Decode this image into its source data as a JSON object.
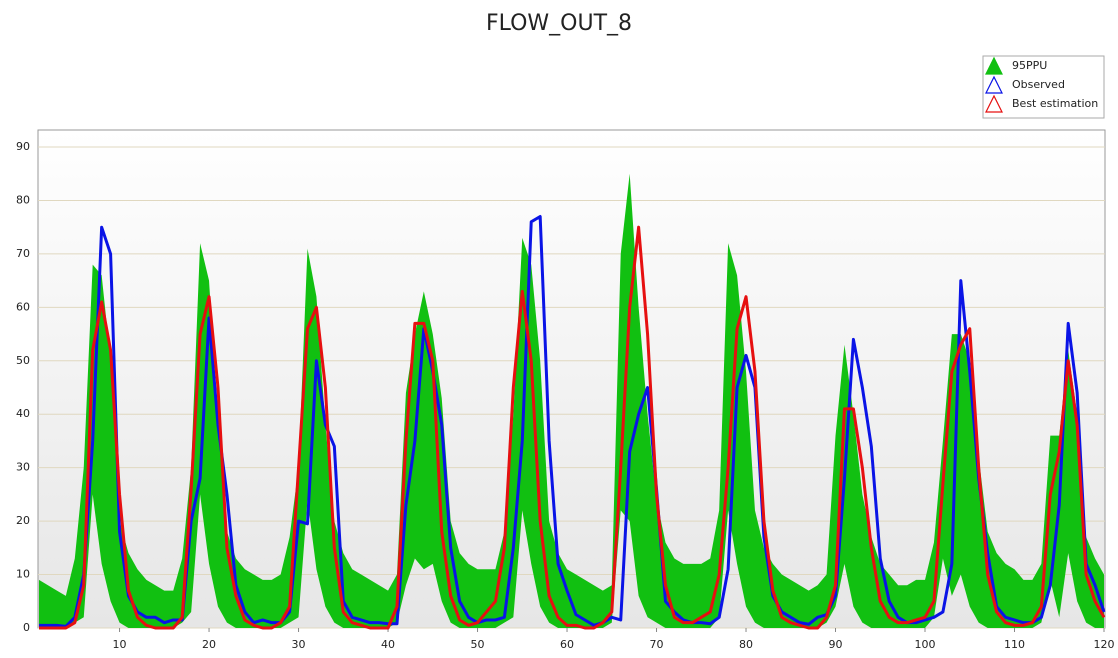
{
  "chart_data": {
    "type": "line",
    "title": "FLOW_OUT_8",
    "x": [
      1,
      2,
      3,
      4,
      5,
      6,
      7,
      8,
      9,
      10,
      11,
      12,
      13,
      14,
      15,
      16,
      17,
      18,
      19,
      20,
      21,
      22,
      23,
      24,
      25,
      26,
      27,
      28,
      29,
      30,
      31,
      32,
      33,
      34,
      35,
      36,
      37,
      38,
      39,
      40,
      41,
      42,
      43,
      44,
      45,
      46,
      47,
      48,
      49,
      50,
      51,
      52,
      53,
      54,
      55,
      56,
      57,
      58,
      59,
      60,
      61,
      62,
      63,
      64,
      65,
      66,
      67,
      68,
      69,
      70,
      71,
      72,
      73,
      74,
      75,
      76,
      77,
      78,
      79,
      80,
      81,
      82,
      83,
      84,
      85,
      86,
      87,
      88,
      89,
      90,
      91,
      92,
      93,
      94,
      95,
      96,
      97,
      98,
      99,
      100,
      101,
      102,
      103,
      104,
      105,
      106,
      107,
      108,
      109,
      110,
      111,
      112,
      113,
      114,
      115,
      116,
      117,
      118,
      119,
      120
    ],
    "xlim": [
      1,
      120
    ],
    "xticks": [
      10,
      20,
      30,
      40,
      50,
      60,
      70,
      80,
      90,
      100,
      110,
      120
    ],
    "ylim": [
      0,
      93
    ],
    "yticks": [
      0,
      10,
      20,
      30,
      40,
      50,
      60,
      70,
      80,
      90
    ],
    "grid": true,
    "legend": "top-right",
    "band": {
      "name": "95PPU",
      "color": "#11c011",
      "upper": [
        9,
        8,
        7,
        6,
        13,
        30,
        68,
        66,
        50,
        20,
        14,
        11,
        9,
        8,
        7,
        7,
        13,
        30,
        72,
        65,
        38,
        18,
        13,
        11,
        10,
        9,
        9,
        10,
        17,
        30,
        71,
        62,
        38,
        20,
        14,
        11,
        10,
        9,
        8,
        7,
        10,
        44,
        55,
        63,
        55,
        43,
        20,
        14,
        12,
        11,
        11,
        11,
        18,
        40,
        73,
        68,
        50,
        20,
        14,
        11,
        10,
        9,
        8,
        7,
        8,
        70,
        85,
        60,
        40,
        24,
        16,
        13,
        12,
        12,
        12,
        13,
        22,
        72,
        66,
        48,
        22,
        15,
        12,
        10,
        9,
        8,
        7,
        8,
        10,
        36,
        53,
        40,
        25,
        17,
        12,
        10,
        8,
        8,
        9,
        9,
        16,
        35,
        55,
        55,
        50,
        32,
        18,
        14,
        12,
        11,
        9,
        9,
        12,
        36,
        36,
        52,
        40,
        17,
        13,
        10
      ],
      "lower": [
        0,
        0,
        0,
        0,
        1,
        2,
        25,
        12,
        5,
        1,
        0,
        0,
        0,
        0,
        0,
        0,
        1,
        3,
        25,
        12,
        4,
        1,
        0,
        0,
        0,
        0,
        0,
        0,
        1,
        2,
        24,
        11,
        4,
        1,
        0,
        0,
        0,
        0,
        0,
        0,
        1,
        8,
        13,
        11,
        12,
        5,
        1,
        0,
        0,
        0,
        0,
        0,
        1,
        2,
        22,
        12,
        4,
        1,
        0,
        0,
        0,
        0,
        0,
        0,
        1,
        22,
        20,
        6,
        2,
        1,
        0,
        0,
        0,
        0,
        0,
        0,
        2,
        22,
        12,
        4,
        1,
        0,
        0,
        0,
        0,
        0,
        0,
        0,
        1,
        4,
        12,
        4,
        1,
        0,
        0,
        0,
        0,
        0,
        0,
        0,
        2,
        13,
        6,
        10,
        4,
        1,
        0,
        0,
        0,
        0,
        0,
        0,
        1,
        9,
        2,
        14,
        5,
        1,
        0,
        0
      ]
    },
    "series": [
      {
        "name": "Observed",
        "color": "#0a14e6",
        "values": [
          0.5,
          0.5,
          0.5,
          0.3,
          2,
          10,
          35,
          75,
          70,
          18,
          6,
          3,
          2,
          2,
          1,
          1.5,
          1.5,
          20,
          28,
          58,
          38,
          25,
          8,
          3,
          1,
          1.5,
          1,
          1,
          3,
          20,
          19.5,
          50,
          38,
          34,
          5,
          2,
          1.5,
          1,
          1,
          0.8,
          0.8,
          23,
          35,
          56,
          48,
          38,
          15,
          5,
          2,
          1,
          1.5,
          1.5,
          2,
          15,
          35,
          76,
          77,
          35,
          12,
          7,
          2.5,
          1.5,
          0.5,
          1,
          2,
          1.5,
          33,
          40,
          45,
          26,
          5,
          3,
          1.5,
          1,
          1,
          0.8,
          2,
          11,
          45,
          51,
          45,
          17,
          6,
          3,
          2,
          1,
          0.7,
          2,
          2.5,
          6,
          28,
          54,
          45,
          34,
          13,
          5,
          2,
          1,
          1,
          1.5,
          2,
          3,
          12,
          65,
          48,
          28,
          14,
          4,
          2,
          1.5,
          1,
          1,
          2,
          8,
          23,
          57,
          44,
          12,
          8,
          3
        ]
      },
      {
        "name": "Best estimation",
        "color": "#e61010",
        "values": [
          0,
          0,
          0,
          0,
          1,
          8,
          52,
          61,
          52,
          25,
          7,
          2,
          0.5,
          0,
          0,
          0,
          2,
          26,
          55,
          62,
          45,
          15,
          6,
          1.5,
          0.5,
          0,
          0,
          1,
          4,
          30,
          56,
          60,
          45,
          15,
          3,
          1,
          0.5,
          0,
          0,
          0,
          4,
          35,
          57,
          57,
          50,
          18,
          6,
          1.5,
          0.5,
          1,
          3,
          5,
          15,
          45,
          63,
          50,
          20,
          6,
          2,
          0.5,
          0.5,
          0,
          0,
          1,
          3,
          30,
          60,
          75,
          55,
          25,
          8,
          2,
          1,
          1,
          2,
          3,
          10,
          30,
          56,
          62,
          48,
          20,
          7,
          2,
          1,
          0.5,
          0,
          0,
          2,
          8,
          41,
          41,
          30,
          15,
          5,
          2,
          1,
          1,
          1.5,
          2,
          5,
          27,
          48,
          53,
          56,
          30,
          10,
          3,
          1,
          0.5,
          0.5,
          1,
          4,
          25,
          33,
          50,
          38,
          10,
          5,
          2
        ]
      }
    ]
  }
}
